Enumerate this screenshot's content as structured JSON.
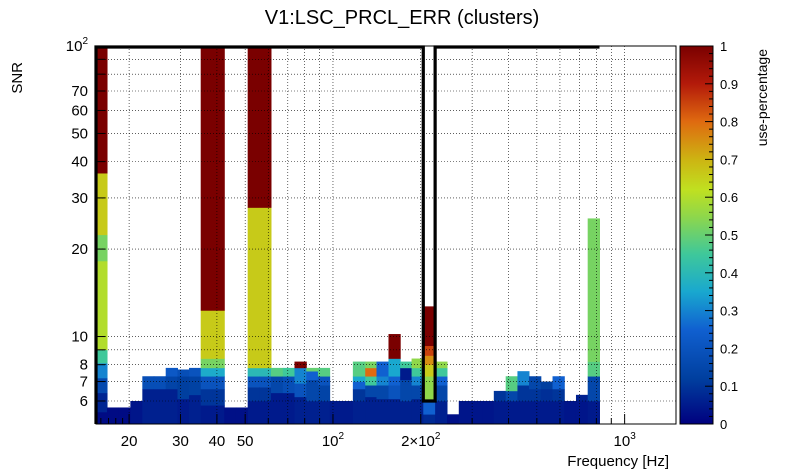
{
  "chart_data": {
    "type": "heatmap",
    "title": "V1:LSC_PRCL_ERR (clusters)",
    "xlabel": "Frequency [Hz]",
    "ylabel": "SNR",
    "colorbar_label": "use-percentage",
    "x_scale": "log",
    "y_scale": "log",
    "xlim": [
      15.4,
      1500
    ],
    "ylim": [
      5,
      100
    ],
    "zlim": [
      0,
      1
    ],
    "x_ticks": [
      {
        "value": 20,
        "label": "20"
      },
      {
        "value": 30,
        "label": "30"
      },
      {
        "value": 40,
        "label": "40"
      },
      {
        "value": 50,
        "label": "50"
      },
      {
        "value": 100,
        "label": "10",
        "sup": "2"
      },
      {
        "value": 200,
        "label": "2×10",
        "sup": "2"
      },
      {
        "value": 1000,
        "label": "10",
        "sup": "3"
      }
    ],
    "y_ticks": [
      {
        "value": 6,
        "label": "6"
      },
      {
        "value": 7,
        "label": "7"
      },
      {
        "value": 8,
        "label": "8"
      },
      {
        "value": 10,
        "label": "10"
      },
      {
        "value": 20,
        "label": "20"
      },
      {
        "value": 30,
        "label": "30"
      },
      {
        "value": 40,
        "label": "40"
      },
      {
        "value": 50,
        "label": "50"
      },
      {
        "value": 60,
        "label": "60"
      },
      {
        "value": 70,
        "label": "70"
      },
      {
        "value": 100,
        "label": "10",
        "sup": "2"
      }
    ],
    "z_ticks": [
      {
        "value": 0,
        "label": "0"
      },
      {
        "value": 0.1,
        "label": "0.1"
      },
      {
        "value": 0.2,
        "label": "0.2"
      },
      {
        "value": 0.3,
        "label": "0.3"
      },
      {
        "value": 0.4,
        "label": "0.4"
      },
      {
        "value": 0.5,
        "label": "0.5"
      },
      {
        "value": 0.6,
        "label": "0.6"
      },
      {
        "value": 0.7,
        "label": "0.7"
      },
      {
        "value": 0.8,
        "label": "0.8"
      },
      {
        "value": 0.9,
        "label": "0.9"
      },
      {
        "value": 1,
        "label": "1"
      }
    ],
    "grid": true,
    "colormap": "kBird-like (dark blue → cyan → green → yellow → orange → dark red)",
    "columns": [
      {
        "f": [
          15.4,
          16.8
        ],
        "cells": [
          [
            5,
            5.5,
            0.02
          ],
          [
            5.5,
            6.4,
            0.07
          ],
          [
            6.4,
            7.2,
            0.16
          ],
          [
            7.2,
            8.1,
            0.3
          ],
          [
            8.1,
            9.0,
            0.45
          ],
          [
            9.0,
            18.2,
            0.6
          ],
          [
            18.2,
            22.4,
            0.52
          ],
          [
            22.4,
            36.5,
            0.66
          ],
          [
            36.5,
            100,
            1.0
          ]
        ]
      },
      {
        "f": [
          16.8,
          18.4
        ],
        "cells": [
          [
            5,
            5.7,
            0.02
          ]
        ]
      },
      {
        "f": [
          18.4,
          20.2
        ],
        "cells": [
          [
            5,
            5.7,
            0.02
          ]
        ]
      },
      {
        "f": [
          20.2,
          22.2
        ],
        "cells": [
          [
            5,
            6.0,
            0.04
          ]
        ]
      },
      {
        "f": [
          22.2,
          24.3
        ],
        "cells": [
          [
            5,
            6.6,
            0.06
          ],
          [
            6.6,
            7.3,
            0.18
          ]
        ]
      },
      {
        "f": [
          24.3,
          26.7
        ],
        "cells": [
          [
            5,
            6.6,
            0.06
          ],
          [
            6.6,
            7.3,
            0.18
          ]
        ]
      },
      {
        "f": [
          26.7,
          29.3
        ],
        "cells": [
          [
            5,
            6.6,
            0.06
          ],
          [
            6.6,
            7.3,
            0.14
          ],
          [
            7.3,
            7.8,
            0.22
          ]
        ]
      },
      {
        "f": [
          29.3,
          32.1
        ],
        "cells": [
          [
            5,
            6.1,
            0.05
          ],
          [
            6.1,
            7.3,
            0.12
          ],
          [
            7.3,
            7.7,
            0.18
          ]
        ]
      },
      {
        "f": [
          32.1,
          35.2
        ],
        "cells": [
          [
            5,
            6.3,
            0.06
          ],
          [
            6.3,
            7.3,
            0.13
          ],
          [
            7.3,
            7.8,
            0.2
          ]
        ]
      },
      {
        "f": [
          35.2,
          38.6
        ],
        "cells": [
          [
            5,
            5.8,
            0.05
          ],
          [
            5.8,
            6.6,
            0.1
          ],
          [
            6.6,
            7.3,
            0.2
          ],
          [
            7.3,
            7.8,
            0.36
          ],
          [
            7.8,
            8.4,
            0.52
          ],
          [
            8.4,
            12.3,
            0.66
          ],
          [
            12.3,
            100,
            1.0
          ]
        ]
      },
      {
        "f": [
          38.6,
          42.4
        ],
        "cells": [
          [
            5,
            5.8,
            0.05
          ],
          [
            5.8,
            6.6,
            0.1
          ],
          [
            6.6,
            7.3,
            0.2
          ],
          [
            7.3,
            7.8,
            0.36
          ],
          [
            7.8,
            8.4,
            0.52
          ],
          [
            8.4,
            12.3,
            0.66
          ],
          [
            12.3,
            100,
            1.0
          ]
        ]
      },
      {
        "f": [
          42.4,
          46.5
        ],
        "cells": [
          [
            5,
            5.7,
            0.03
          ]
        ]
      },
      {
        "f": [
          46.5,
          51.0
        ],
        "cells": [
          [
            5,
            5.7,
            0.03
          ]
        ]
      },
      {
        "f": [
          51.0,
          55.9
        ],
        "cells": [
          [
            5,
            6.0,
            0.05
          ],
          [
            6.0,
            6.7,
            0.1
          ],
          [
            6.7,
            7.3,
            0.2
          ],
          [
            7.3,
            7.8,
            0.4
          ],
          [
            7.8,
            27.8,
            0.66
          ],
          [
            27.8,
            100,
            1.0
          ]
        ]
      },
      {
        "f": [
          55.9,
          61.3
        ],
        "cells": [
          [
            5,
            6.0,
            0.05
          ],
          [
            6.0,
            6.7,
            0.1
          ],
          [
            6.7,
            7.3,
            0.2
          ],
          [
            7.3,
            7.8,
            0.4
          ],
          [
            7.8,
            27.8,
            0.66
          ],
          [
            27.8,
            100,
            1.0
          ]
        ]
      },
      {
        "f": [
          61.3,
          67.3
        ],
        "cells": [
          [
            5,
            6.4,
            0.05
          ],
          [
            6.4,
            7.3,
            0.15
          ],
          [
            7.3,
            7.8,
            0.48
          ]
        ]
      },
      {
        "f": [
          67.3,
          73.8
        ],
        "cells": [
          [
            5,
            6.4,
            0.05
          ],
          [
            6.4,
            7.3,
            0.18
          ],
          [
            7.3,
            7.8,
            0.45
          ]
        ]
      },
      {
        "f": [
          73.8,
          81.0
        ],
        "cells": [
          [
            5,
            6.2,
            0.06
          ],
          [
            6.2,
            6.9,
            0.2
          ],
          [
            6.9,
            7.8,
            0.3
          ],
          [
            7.8,
            8.2,
            1.0
          ]
        ]
      },
      {
        "f": [
          81.0,
          88.8
        ],
        "cells": [
          [
            5,
            6.0,
            0.06
          ],
          [
            6.0,
            7.1,
            0.15
          ],
          [
            7.1,
            7.6,
            0.25
          ],
          [
            7.6,
            7.8,
            0.5
          ]
        ]
      },
      {
        "f": [
          88.8,
          97.4
        ],
        "cells": [
          [
            5,
            6.0,
            0.06
          ],
          [
            6.0,
            6.8,
            0.14
          ],
          [
            6.8,
            7.3,
            0.2
          ],
          [
            7.3,
            7.8,
            0.48
          ]
        ]
      },
      {
        "f": [
          97.4,
          107
        ],
        "cells": [
          [
            5,
            6.0,
            0.05
          ]
        ]
      },
      {
        "f": [
          107,
          117
        ],
        "cells": [
          [
            5,
            6.0,
            0.05
          ]
        ]
      },
      {
        "f": [
          117,
          129
        ],
        "cells": [
          [
            5,
            6.0,
            0.06
          ],
          [
            6.0,
            6.6,
            0.1
          ],
          [
            6.6,
            7.0,
            0.25
          ],
          [
            7.0,
            7.3,
            0.35
          ],
          [
            7.3,
            8.2,
            0.48
          ]
        ]
      },
      {
        "f": [
          129,
          141
        ],
        "cells": [
          [
            5,
            6.2,
            0.06
          ],
          [
            6.2,
            6.8,
            0.15
          ],
          [
            6.8,
            7.3,
            0.45
          ],
          [
            7.3,
            7.8,
            0.8
          ],
          [
            7.8,
            8.2,
            0.52
          ]
        ]
      },
      {
        "f": [
          141,
          155
        ],
        "cells": [
          [
            5,
            6.1,
            0.06
          ],
          [
            6.1,
            6.8,
            0.15
          ],
          [
            6.8,
            7.3,
            0.3
          ],
          [
            7.3,
            8.2,
            0.25
          ]
        ]
      },
      {
        "f": [
          155,
          170
        ],
        "cells": [
          [
            5,
            6.1,
            0.06
          ],
          [
            6.1,
            6.8,
            0.2
          ],
          [
            6.8,
            7.3,
            0.25
          ],
          [
            7.3,
            8.4,
            0.35
          ],
          [
            8.4,
            10.2,
            1.0
          ]
        ]
      },
      {
        "f": [
          170,
          186
        ],
        "cells": [
          [
            5,
            6.0,
            0.06
          ],
          [
            6.0,
            7.1,
            0.15
          ],
          [
            7.1,
            7.8,
            0.05
          ],
          [
            7.8,
            8.2,
            0.45
          ]
        ]
      },
      {
        "f": [
          186,
          204
        ],
        "cells": [
          [
            5,
            6.1,
            0.06
          ],
          [
            6.1,
            6.8,
            0.15
          ],
          [
            6.8,
            7.3,
            0.3
          ],
          [
            7.3,
            7.8,
            0.45
          ],
          [
            7.8,
            8.4,
            0.55
          ]
        ]
      },
      {
        "f": [
          204,
          224
        ],
        "cells": [
          [
            5,
            5.4,
            0.08
          ],
          [
            5.4,
            6.0,
            0.25
          ],
          [
            6.0,
            7.3,
            0.55
          ],
          [
            7.3,
            8.0,
            0.66
          ],
          [
            8.0,
            8.6,
            0.75
          ],
          [
            8.6,
            9.3,
            0.85
          ],
          [
            9.3,
            12.7,
            1.0
          ]
        ]
      },
      {
        "f": [
          224,
          246
        ],
        "cells": [
          [
            5,
            6.0,
            0.06
          ],
          [
            6.0,
            6.8,
            0.15
          ],
          [
            6.8,
            7.3,
            0.25
          ],
          [
            7.3,
            7.8,
            0.45
          ],
          [
            7.8,
            8.2,
            0.55
          ]
        ]
      },
      {
        "f": [
          246,
          270
        ],
        "cells": [
          [
            5,
            5.4,
            0.03
          ]
        ]
      },
      {
        "f": [
          270,
          296
        ],
        "cells": [
          [
            5,
            6.0,
            0.04
          ]
        ]
      },
      {
        "f": [
          296,
          325
        ],
        "cells": [
          [
            5,
            6.0,
            0.04
          ]
        ]
      },
      {
        "f": [
          325,
          356
        ],
        "cells": [
          [
            5,
            6.0,
            0.04
          ]
        ]
      },
      {
        "f": [
          356,
          391
        ],
        "cells": [
          [
            5,
            6.0,
            0.05
          ],
          [
            6.0,
            6.5,
            0.1
          ]
        ]
      },
      {
        "f": [
          391,
          429
        ],
        "cells": [
          [
            5,
            6.0,
            0.05
          ],
          [
            6.0,
            6.5,
            0.15
          ],
          [
            6.5,
            7.3,
            0.48
          ]
        ]
      },
      {
        "f": [
          429,
          470
        ],
        "cells": [
          [
            5,
            6.0,
            0.05
          ],
          [
            6.0,
            6.8,
            0.1
          ],
          [
            6.8,
            7.6,
            0.3
          ]
        ]
      },
      {
        "f": [
          470,
          516
        ],
        "cells": [
          [
            5,
            6.0,
            0.05
          ],
          [
            6.0,
            6.6,
            0.1
          ],
          [
            6.6,
            7.3,
            0.15
          ]
        ]
      },
      {
        "f": [
          516,
          566
        ],
        "cells": [
          [
            5,
            6.0,
            0.05
          ],
          [
            6.0,
            6.6,
            0.09
          ],
          [
            6.6,
            7.0,
            0.12
          ]
        ]
      },
      {
        "f": [
          566,
          621
        ],
        "cells": [
          [
            5,
            6.0,
            0.05
          ],
          [
            6.0,
            6.6,
            0.1
          ],
          [
            6.6,
            7.3,
            0.25
          ]
        ]
      },
      {
        "f": [
          621,
          681
        ],
        "cells": [
          [
            5,
            6.0,
            0.04
          ]
        ]
      },
      {
        "f": [
          681,
          747
        ],
        "cells": [
          [
            5,
            6.0,
            0.04
          ],
          [
            6.0,
            6.3,
            0.06
          ]
        ]
      },
      {
        "f": [
          747,
          820
        ],
        "cells": [
          [
            5,
            6.0,
            0.05
          ],
          [
            6.0,
            7.3,
            0.15
          ],
          [
            7.3,
            8.2,
            0.48
          ],
          [
            8.2,
            25.5,
            0.52
          ]
        ]
      }
    ]
  }
}
